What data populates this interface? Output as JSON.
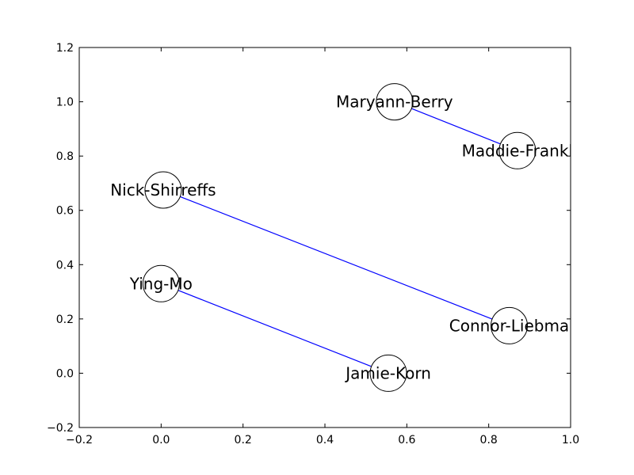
{
  "chart_data": {
    "type": "scatter",
    "title": "",
    "xlabel": "",
    "ylabel": "",
    "xlim": [
      -0.2,
      1.0
    ],
    "ylim": [
      -0.2,
      1.2
    ],
    "x_ticks": [
      -0.2,
      0.0,
      0.2,
      0.4,
      0.6,
      0.8,
      1.0
    ],
    "y_ticks": [
      -0.2,
      0.0,
      0.2,
      0.4,
      0.6,
      0.8,
      1.0,
      1.2
    ],
    "x_tick_labels": [
      "−0.2",
      "0.0",
      "0.2",
      "0.4",
      "0.6",
      "0.8",
      "1.0"
    ],
    "y_tick_labels": [
      "−0.2",
      "0.0",
      "0.2",
      "0.4",
      "0.6",
      "0.8",
      "1.0",
      "1.2"
    ],
    "grid": false,
    "edge_color": "#0000ff",
    "nodes": [
      {
        "id": "maryann",
        "label": "Maryann-Berry",
        "x": 0.57,
        "y": 1.0
      },
      {
        "id": "maddie",
        "label": "Maddie-Frankl",
        "x": 0.87,
        "y": 0.82
      },
      {
        "id": "nick",
        "label": "Nick-Shirreffs",
        "x": 0.005,
        "y": 0.675
      },
      {
        "id": "ying",
        "label": "Ying-Mo",
        "x": 0.0,
        "y": 0.33
      },
      {
        "id": "connor",
        "label": "Connor-Liebma",
        "x": 0.85,
        "y": 0.175
      },
      {
        "id": "jamie",
        "label": "Jamie-Korn",
        "x": 0.555,
        "y": 0.0
      }
    ],
    "edges": [
      {
        "from": "maryann",
        "to": "maddie"
      },
      {
        "from": "nick",
        "to": "connor"
      },
      {
        "from": "ying",
        "to": "jamie"
      }
    ]
  }
}
